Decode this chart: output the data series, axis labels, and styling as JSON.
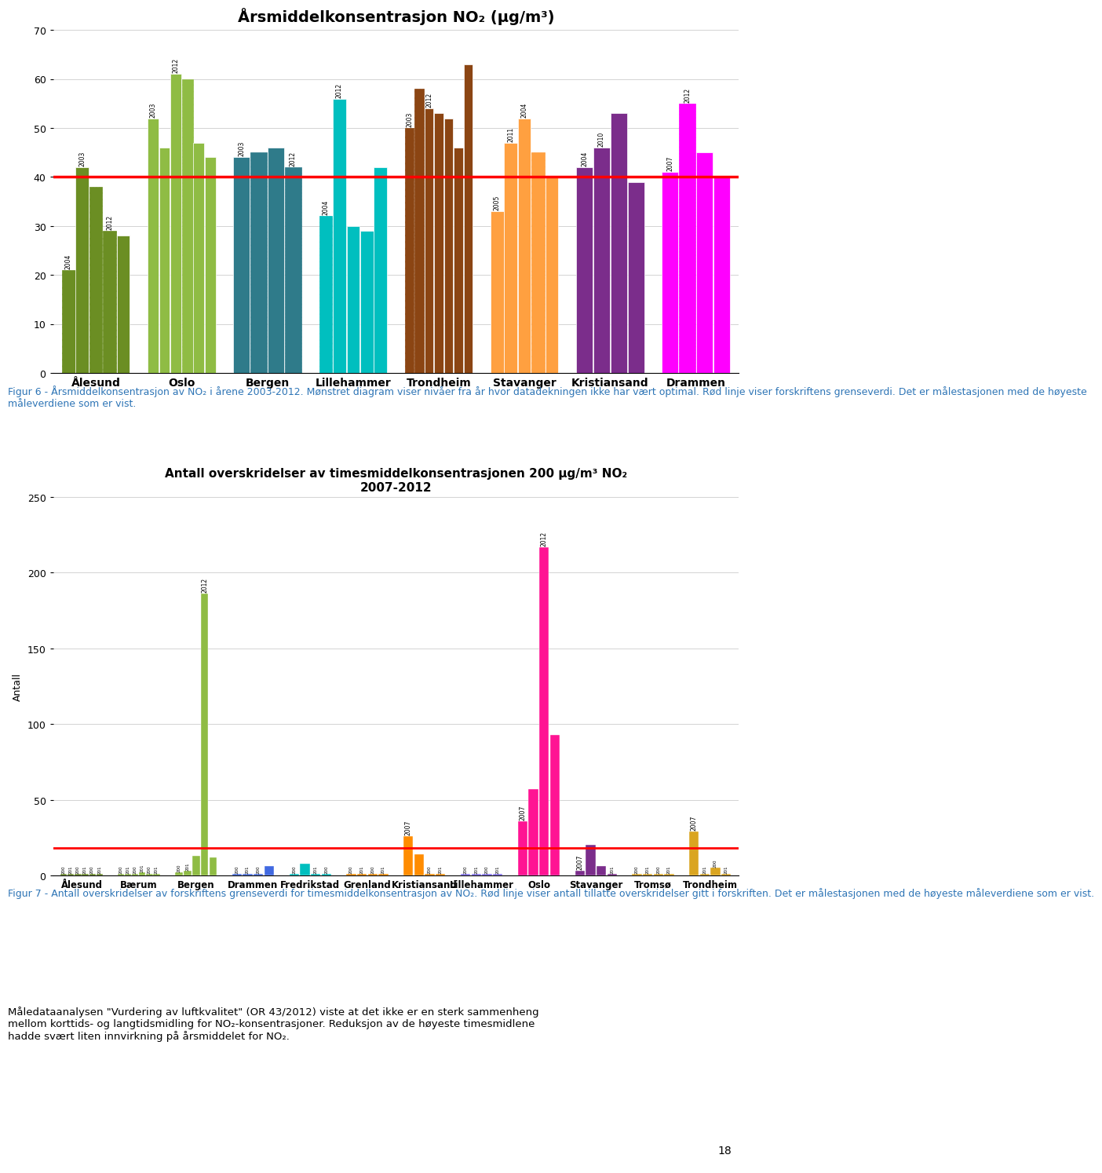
{
  "chart1": {
    "title": "Årsmiddelkonsentrasjon NO₂ (μg/m³)",
    "ylim": [
      0,
      70
    ],
    "yticks": [
      0,
      10,
      20,
      30,
      40,
      50,
      60,
      70
    ],
    "red_line": 40,
    "cities": [
      "Ålesund",
      "Oslo",
      "Bergen",
      "Lillehammer",
      "Trondheim",
      "Stavanger",
      "Kristiansand",
      "Drammen"
    ],
    "groups": [
      {
        "city": "Ålesund",
        "bars": [
          {
            "year": "2004",
            "value": 21,
            "hatched": true
          },
          {
            "year": "2003",
            "value": 42,
            "hatched": false
          },
          {
            "year": "",
            "value": 38,
            "hatched": true
          },
          {
            "year": "2012",
            "value": 29,
            "hatched": true
          },
          {
            "year": "",
            "value": 28,
            "hatched": false
          }
        ],
        "color": "#6B8E23"
      },
      {
        "city": "Oslo",
        "bars": [
          {
            "year": "2003",
            "value": 52,
            "hatched": false
          },
          {
            "year": "",
            "value": 46,
            "hatched": false
          },
          {
            "year": "2012",
            "value": 61,
            "hatched": false
          },
          {
            "year": "",
            "value": 60,
            "hatched": true
          },
          {
            "year": "",
            "value": 47,
            "hatched": false
          },
          {
            "year": "",
            "value": 44,
            "hatched": false
          }
        ],
        "color": "#8FBC44"
      },
      {
        "city": "Bergen",
        "bars": [
          {
            "year": "2003",
            "value": 44,
            "hatched": false
          },
          {
            "year": "",
            "value": 45,
            "hatched": true
          },
          {
            "year": "",
            "value": 46,
            "hatched": false
          },
          {
            "year": "2012",
            "value": 42,
            "hatched": true
          }
        ],
        "color": "#2F7B8A"
      },
      {
        "city": "Lillehammer",
        "bars": [
          {
            "year": "2004",
            "value": 32,
            "hatched": true
          },
          {
            "year": "2012",
            "value": 56,
            "hatched": false
          },
          {
            "year": "",
            "value": 30,
            "hatched": false
          },
          {
            "year": "",
            "value": 29,
            "hatched": false
          },
          {
            "year": "",
            "value": 42,
            "hatched": false
          }
        ],
        "color": "#00BFBF"
      },
      {
        "city": "Trondheim",
        "bars": [
          {
            "year": "2003",
            "value": 50,
            "hatched": true
          },
          {
            "year": "",
            "value": 58,
            "hatched": true
          },
          {
            "year": "2012",
            "value": 54,
            "hatched": false
          },
          {
            "year": "",
            "value": 53,
            "hatched": false
          },
          {
            "year": "",
            "value": 52,
            "hatched": false
          },
          {
            "year": "",
            "value": 46,
            "hatched": false
          },
          {
            "year": "",
            "value": 63,
            "hatched": false
          }
        ],
        "color": "#8B4513"
      },
      {
        "city": "Stavanger",
        "bars": [
          {
            "year": "2005",
            "value": 33,
            "hatched": false
          },
          {
            "year": "2011",
            "value": 47,
            "hatched": false
          },
          {
            "year": "2004",
            "value": 52,
            "hatched": false
          },
          {
            "year": "",
            "value": 45,
            "hatched": true
          },
          {
            "year": "",
            "value": 40,
            "hatched": false
          }
        ],
        "color": "#FFA040"
      },
      {
        "city": "Kristiansand",
        "bars": [
          {
            "year": "2004",
            "value": 42,
            "hatched": false
          },
          {
            "year": "2010",
            "value": 46,
            "hatched": false
          },
          {
            "year": "",
            "value": 53,
            "hatched": false
          },
          {
            "year": "",
            "value": 39,
            "hatched": false
          }
        ],
        "color": "#7B2D8B"
      },
      {
        "city": "Drammen",
        "bars": [
          {
            "year": "2007",
            "value": 41,
            "hatched": false
          },
          {
            "year": "2012",
            "value": 55,
            "hatched": true
          },
          {
            "year": "",
            "value": 45,
            "hatched": false
          },
          {
            "year": "",
            "value": 40,
            "hatched": false
          }
        ],
        "color": "#FF00FF"
      }
    ]
  },
  "chart2": {
    "title1": "Antall overskridelser av timesmiddelkonsentrasjonen 200 μg/m³ NO₂",
    "title2": "2007-2012",
    "ylabel": "Antall",
    "ylim": [
      0,
      250
    ],
    "yticks": [
      0,
      50,
      100,
      150,
      200,
      250
    ],
    "red_line": 18,
    "cities": [
      "Ålesund",
      "Bærum",
      "Bergen",
      "Drammen",
      "Fredrikstad",
      "Grenland",
      "Kristiansand",
      "Lillehammer",
      "Oslo",
      "Stavanger",
      "Tromsø",
      "Trondheim"
    ],
    "groups": [
      {
        "city": "Ålesund",
        "bars": [
          {
            "year": "200",
            "value": 1,
            "show_label": false
          },
          {
            "year": "201",
            "value": 1,
            "show_label": false
          },
          {
            "year": "200",
            "value": 1,
            "show_label": false
          },
          {
            "year": "201",
            "value": 1,
            "show_label": false
          },
          {
            "year": "200",
            "value": 1,
            "show_label": false
          },
          {
            "year": "201",
            "value": 1,
            "show_label": false
          }
        ],
        "color": "#6B8E23"
      },
      {
        "city": "Bærum",
        "bars": [
          {
            "year": "200",
            "value": 1,
            "show_label": false
          },
          {
            "year": "201",
            "value": 1,
            "show_label": false
          },
          {
            "year": "200",
            "value": 1,
            "show_label": false
          },
          {
            "year": "201",
            "value": 2,
            "show_label": false
          },
          {
            "year": "200",
            "value": 1,
            "show_label": false
          },
          {
            "year": "201",
            "value": 1,
            "show_label": false
          }
        ],
        "color": "#8FBC44"
      },
      {
        "city": "Bergen",
        "bars": [
          {
            "year": "200",
            "value": 2,
            "show_label": false
          },
          {
            "year": "201",
            "value": 3,
            "show_label": false
          },
          {
            "year": "200",
            "value": 13,
            "show_label": false
          },
          {
            "year": "2012",
            "value": 186,
            "show_label": true
          },
          {
            "year": "201",
            "value": 12,
            "show_label": false
          }
        ],
        "color": "#8FBC44"
      },
      {
        "city": "Drammen",
        "bars": [
          {
            "year": "200",
            "value": 1,
            "show_label": false
          },
          {
            "year": "201",
            "value": 1,
            "show_label": false
          },
          {
            "year": "200",
            "value": 1,
            "show_label": false
          },
          {
            "year": "201",
            "value": 6,
            "show_label": false
          }
        ],
        "color": "#4169E1"
      },
      {
        "city": "Fredrikstad",
        "bars": [
          {
            "year": "200",
            "value": 1,
            "show_label": false
          },
          {
            "year": "2011",
            "value": 8,
            "show_label": false
          },
          {
            "year": "201",
            "value": 1,
            "show_label": false
          },
          {
            "year": "200",
            "value": 1,
            "show_label": false
          }
        ],
        "color": "#00BFBF"
      },
      {
        "city": "Grenland",
        "bars": [
          {
            "year": "200",
            "value": 1,
            "show_label": false
          },
          {
            "year": "201",
            "value": 1,
            "show_label": false
          },
          {
            "year": "200",
            "value": 1,
            "show_label": false
          },
          {
            "year": "201",
            "value": 1,
            "show_label": false
          }
        ],
        "color": "#FF8C00"
      },
      {
        "city": "Kristiansand",
        "bars": [
          {
            "year": "2007",
            "value": 26,
            "show_label": true
          },
          {
            "year": "201",
            "value": 14,
            "show_label": false
          },
          {
            "year": "200",
            "value": 1,
            "show_label": false
          },
          {
            "year": "201",
            "value": 1,
            "show_label": false
          }
        ],
        "color": "#FF8C00"
      },
      {
        "city": "Lillehammer",
        "bars": [
          {
            "year": "200",
            "value": 1,
            "show_label": false
          },
          {
            "year": "201",
            "value": 1,
            "show_label": false
          },
          {
            "year": "200",
            "value": 1,
            "show_label": false
          },
          {
            "year": "201",
            "value": 1,
            "show_label": false
          }
        ],
        "color": "#7B68EE"
      },
      {
        "city": "Oslo",
        "bars": [
          {
            "year": "2007",
            "value": 36,
            "show_label": true
          },
          {
            "year": "201",
            "value": 57,
            "show_label": false
          },
          {
            "year": "2012",
            "value": 217,
            "show_label": true
          },
          {
            "year": "201",
            "value": 93,
            "show_label": false
          }
        ],
        "color": "#FF1493"
      },
      {
        "city": "Stavanger",
        "bars": [
          {
            "year": "2007",
            "value": 3,
            "show_label": true
          },
          {
            "year": "201",
            "value": 20,
            "show_label": false
          },
          {
            "year": "200",
            "value": 6,
            "show_label": false
          },
          {
            "year": "201",
            "value": 1,
            "show_label": false
          }
        ],
        "color": "#7B2D8B"
      },
      {
        "city": "Tromsø",
        "bars": [
          {
            "year": "200",
            "value": 1,
            "show_label": false
          },
          {
            "year": "201",
            "value": 1,
            "show_label": false
          },
          {
            "year": "200",
            "value": 1,
            "show_label": false
          },
          {
            "year": "201",
            "value": 1,
            "show_label": false
          }
        ],
        "color": "#DAA520"
      },
      {
        "city": "Trondheim",
        "bars": [
          {
            "year": "2007",
            "value": 29,
            "show_label": true
          },
          {
            "year": "201",
            "value": 1,
            "show_label": false
          },
          {
            "year": "200",
            "value": 5,
            "show_label": false
          },
          {
            "year": "201",
            "value": 1,
            "show_label": false
          }
        ],
        "color": "#DAA520"
      }
    ]
  },
  "fig1_caption": "Figur 6 - Årsmiddelkonsentrasjon av NO₂ i årene 2003-2012. Mønstret diagram viser nivåer fra år hvor datadekningen ikke har vært optimal. Rød linje viser forskriftens grenseverdi. Det er målestasjonen med de høyeste måleverdiene som er vist.",
  "fig2_caption": "Figur 7 - Antall overskridelser av forskriftens grenseverdi for timesmiddelkonsentrasjon av NO₂. Rød linje viser antall tillatte overskridelser gitt i forskriften. Det er målestasjonen med de høyeste måleverdiene som er vist.",
  "bottom_text": "Måledataanalysen \"Vurdering av luftkvalitet\" (OR 43/2012) viste at det ikke er en sterk sammenheng\nmellom korttids- og langtidsmidling for NO₂-konsentrasjoner. Reduksjon av de høyeste timesmidlene\nhadde svært liten innvirkning på årsmiddelet for NO₂.",
  "page_number": "18"
}
